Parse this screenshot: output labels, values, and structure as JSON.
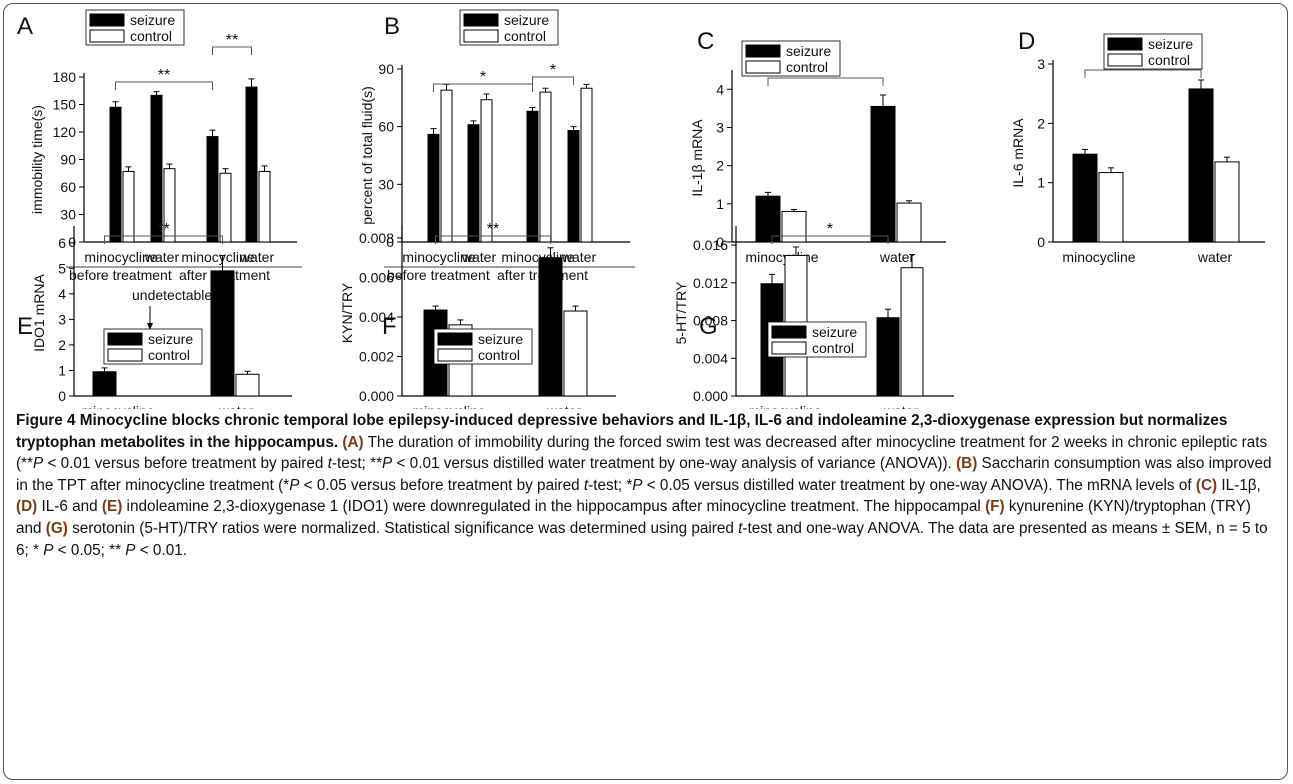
{
  "chart_data": [
    {
      "panel": "A",
      "type": "bar",
      "categories": [
        "minocycline",
        "water",
        "minocycline",
        "water"
      ],
      "groups": [
        "before treatment",
        "after treatment"
      ],
      "ylabel": "immobility time(s)",
      "ylim": [
        0,
        180
      ],
      "yticks": [
        0,
        30,
        60,
        90,
        120,
        150,
        180
      ],
      "tick_labels": [
        "0",
        "30",
        "60",
        "90",
        "120",
        "150",
        "180"
      ],
      "series": [
        {
          "name": "seizure",
          "values": [
            147,
            160,
            115,
            169
          ],
          "errors": [
            6,
            4,
            7,
            9
          ]
        },
        {
          "name": "control",
          "values": [
            77,
            80,
            75,
            77
          ],
          "errors": [
            5,
            5,
            5,
            6
          ]
        }
      ],
      "annotations": [
        {
          "from": 0,
          "to": 2,
          "text": "**"
        },
        {
          "from": 2,
          "to": 3,
          "text": "**"
        }
      ],
      "legend": "top-left"
    },
    {
      "panel": "B",
      "type": "bar",
      "categories": [
        "minocycline",
        "water",
        "minocycline",
        "water"
      ],
      "groups": [
        "before treatment",
        "after treatment"
      ],
      "ylabel": "percent of total fluid(s)",
      "ylim": [
        0,
        90
      ],
      "yticks": [
        0,
        30,
        60,
        90
      ],
      "tick_labels": [
        "0",
        "30",
        "60",
        "90"
      ],
      "series": [
        {
          "name": "seizure",
          "values": [
            56,
            61,
            68,
            58
          ],
          "errors": [
            3,
            2,
            2,
            2
          ]
        },
        {
          "name": "control",
          "values": [
            79,
            74,
            78,
            80
          ],
          "errors": [
            3,
            3,
            2,
            2
          ]
        }
      ],
      "annotations": [
        {
          "from": 0,
          "to": 2,
          "text": "*"
        },
        {
          "from": 2,
          "to": 3,
          "text": "*"
        }
      ],
      "legend": "top-left"
    },
    {
      "panel": "C",
      "type": "bar",
      "categories": [
        "minocycline",
        "water"
      ],
      "ylabel": "IL-1β mRNA",
      "ylim": [
        0,
        4.4
      ],
      "yticks": [
        0,
        1,
        2,
        3,
        4
      ],
      "tick_labels": [
        "0",
        "1",
        "2",
        "3",
        "4"
      ],
      "series": [
        {
          "name": "seizure",
          "values": [
            1.2,
            3.55
          ],
          "errors": [
            0.1,
            0.3
          ]
        },
        {
          "name": "control",
          "values": [
            0.8,
            1.02
          ],
          "errors": [
            0.05,
            0.06
          ]
        }
      ],
      "annotations": [
        {
          "from": 0,
          "to": 1,
          "text": "**"
        }
      ],
      "legend": "top-left"
    },
    {
      "panel": "D",
      "type": "bar",
      "categories": [
        "minocycline",
        "water"
      ],
      "ylabel": "IL-6 mRNA",
      "ylim": [
        0,
        3
      ],
      "yticks": [
        0,
        1,
        2,
        3
      ],
      "tick_labels": [
        "0",
        "1",
        "2",
        "3"
      ],
      "series": [
        {
          "name": "seizure",
          "values": [
            1.48,
            2.58
          ],
          "errors": [
            0.08,
            0.15
          ]
        },
        {
          "name": "control",
          "values": [
            1.17,
            1.35
          ],
          "errors": [
            0.08,
            0.08
          ]
        }
      ],
      "annotations": [
        {
          "from": 0,
          "to": 1,
          "text": "**"
        }
      ],
      "legend": "top-right"
    },
    {
      "panel": "E",
      "type": "bar",
      "categories": [
        "minocycline",
        "water"
      ],
      "ylabel": "IDO1 mRNA",
      "ylim": [
        0,
        6.5
      ],
      "yticks": [
        0,
        1,
        2,
        3,
        4,
        5,
        6
      ],
      "tick_labels": [
        "0",
        "1",
        "2",
        "3",
        "4",
        "5",
        "6"
      ],
      "series": [
        {
          "name": "seizure",
          "values": [
            0.95,
            4.9
          ],
          "errors": [
            0.15,
            0.6
          ]
        },
        {
          "name": "control",
          "values": [
            0,
            0.85
          ],
          "errors": [
            0,
            0.12
          ]
        }
      ],
      "annotations": [
        {
          "from": 0,
          "to": 1,
          "text": "**"
        }
      ],
      "note": "undetectable",
      "legend": "top-left"
    },
    {
      "panel": "F",
      "type": "bar",
      "categories": [
        "minocycline",
        "water"
      ],
      "ylabel": "KYN/TRY",
      "ylim": [
        0,
        0.0084
      ],
      "yticks": [
        0,
        0.002,
        0.004,
        0.006,
        0.008
      ],
      "tick_labels": [
        "0.000",
        "0.002",
        "0.004",
        "0.006",
        "0.008"
      ],
      "series": [
        {
          "name": "seizure",
          "values": [
            0.00435,
            0.007
          ],
          "errors": [
            0.0002,
            0.0005
          ]
        },
        {
          "name": "control",
          "values": [
            0.0036,
            0.0043
          ],
          "errors": [
            0.00025,
            0.00025
          ]
        }
      ],
      "annotations": [
        {
          "from": 0,
          "to": 1,
          "text": "**"
        }
      ],
      "legend": "top-left"
    },
    {
      "panel": "G",
      "type": "bar",
      "categories": [
        "minocycline",
        "water"
      ],
      "ylabel": "5-HT/TRY",
      "ylim": [
        0,
        0.0176
      ],
      "yticks": [
        0,
        0.004,
        0.008,
        0.012,
        0.016
      ],
      "tick_labels": [
        "0.000",
        "0.004",
        "0.008",
        "0.012",
        "0.016"
      ],
      "series": [
        {
          "name": "seizure",
          "values": [
            0.0119,
            0.0083
          ],
          "errors": [
            0.001,
            0.0009
          ]
        },
        {
          "name": "control",
          "values": [
            0.0149,
            0.0136
          ],
          "errors": [
            0.0009,
            0.0014
          ]
        }
      ],
      "annotations": [
        {
          "from": 0,
          "to": 1,
          "text": "*"
        }
      ],
      "legend": "top-left"
    }
  ],
  "caption": {
    "title": "Figure 4 Minocycline blocks chronic temporal lobe epilepsy-induced depressive behaviors and IL-1β, IL-6 and indoleamine 2,3-dioxygenase expression but normalizes tryptophan metabolites in the hippocampus.",
    "segments": [
      {
        "t": " ",
        "s": ""
      },
      {
        "t": "(A)",
        "s": "rl"
      },
      {
        "t": " The duration of immobility during the forced swim test was decreased after minocycline treatment for 2 weeks in chronic epileptic rats (**",
        "s": ""
      },
      {
        "t": "P",
        "s": "i"
      },
      {
        "t": " < 0.01 versus before treatment by paired ",
        "s": ""
      },
      {
        "t": "t",
        "s": "i"
      },
      {
        "t": "-test; **",
        "s": ""
      },
      {
        "t": "P",
        "s": "i"
      },
      {
        "t": " < 0.01 versus distilled water treatment by one-way analysis of variance (ANOVA)). ",
        "s": ""
      },
      {
        "t": "(B)",
        "s": "rl"
      },
      {
        "t": " Saccharin consumption was also improved in the TPT after minocycline treatment (*",
        "s": ""
      },
      {
        "t": "P",
        "s": "i"
      },
      {
        "t": " < 0.05 versus before treatment by paired ",
        "s": ""
      },
      {
        "t": "t",
        "s": "i"
      },
      {
        "t": "-test; *",
        "s": ""
      },
      {
        "t": "P",
        "s": "i"
      },
      {
        "t": " < 0.05 versus distilled water treatment by one-way ANOVA). The mRNA levels of ",
        "s": ""
      },
      {
        "t": "(C)",
        "s": "rl"
      },
      {
        "t": " IL-1β, ",
        "s": ""
      },
      {
        "t": "(D)",
        "s": "rl"
      },
      {
        "t": " IL-6 and ",
        "s": ""
      },
      {
        "t": "(E)",
        "s": "rl"
      },
      {
        "t": " indoleamine 2,3-dioxygenase 1 (IDO1) were downregulated in the hippocampus after minocycline treatment. The hippocampal ",
        "s": ""
      },
      {
        "t": "(F)",
        "s": "rl"
      },
      {
        "t": " kynurenine (KYN)/tryptophan (TRY) and ",
        "s": ""
      },
      {
        "t": "(G)",
        "s": "rl"
      },
      {
        "t": " serotonin (5-HT)/TRY ratios were normalized. Statistical significance was determined using paired ",
        "s": ""
      },
      {
        "t": "t",
        "s": "i"
      },
      {
        "t": "-test and one-way ANOVA. The data are presented as means ± SEM, n = 5 to 6; * ",
        "s": ""
      },
      {
        "t": "P",
        "s": "i"
      },
      {
        "t": " < 0.05; ** ",
        "s": ""
      },
      {
        "t": "P",
        "s": "i"
      },
      {
        "t": " < 0.01.",
        "s": ""
      }
    ]
  },
  "colors": {
    "seizure": "#000000",
    "control": "#ffffff",
    "label_accent": "#7a3b18"
  }
}
